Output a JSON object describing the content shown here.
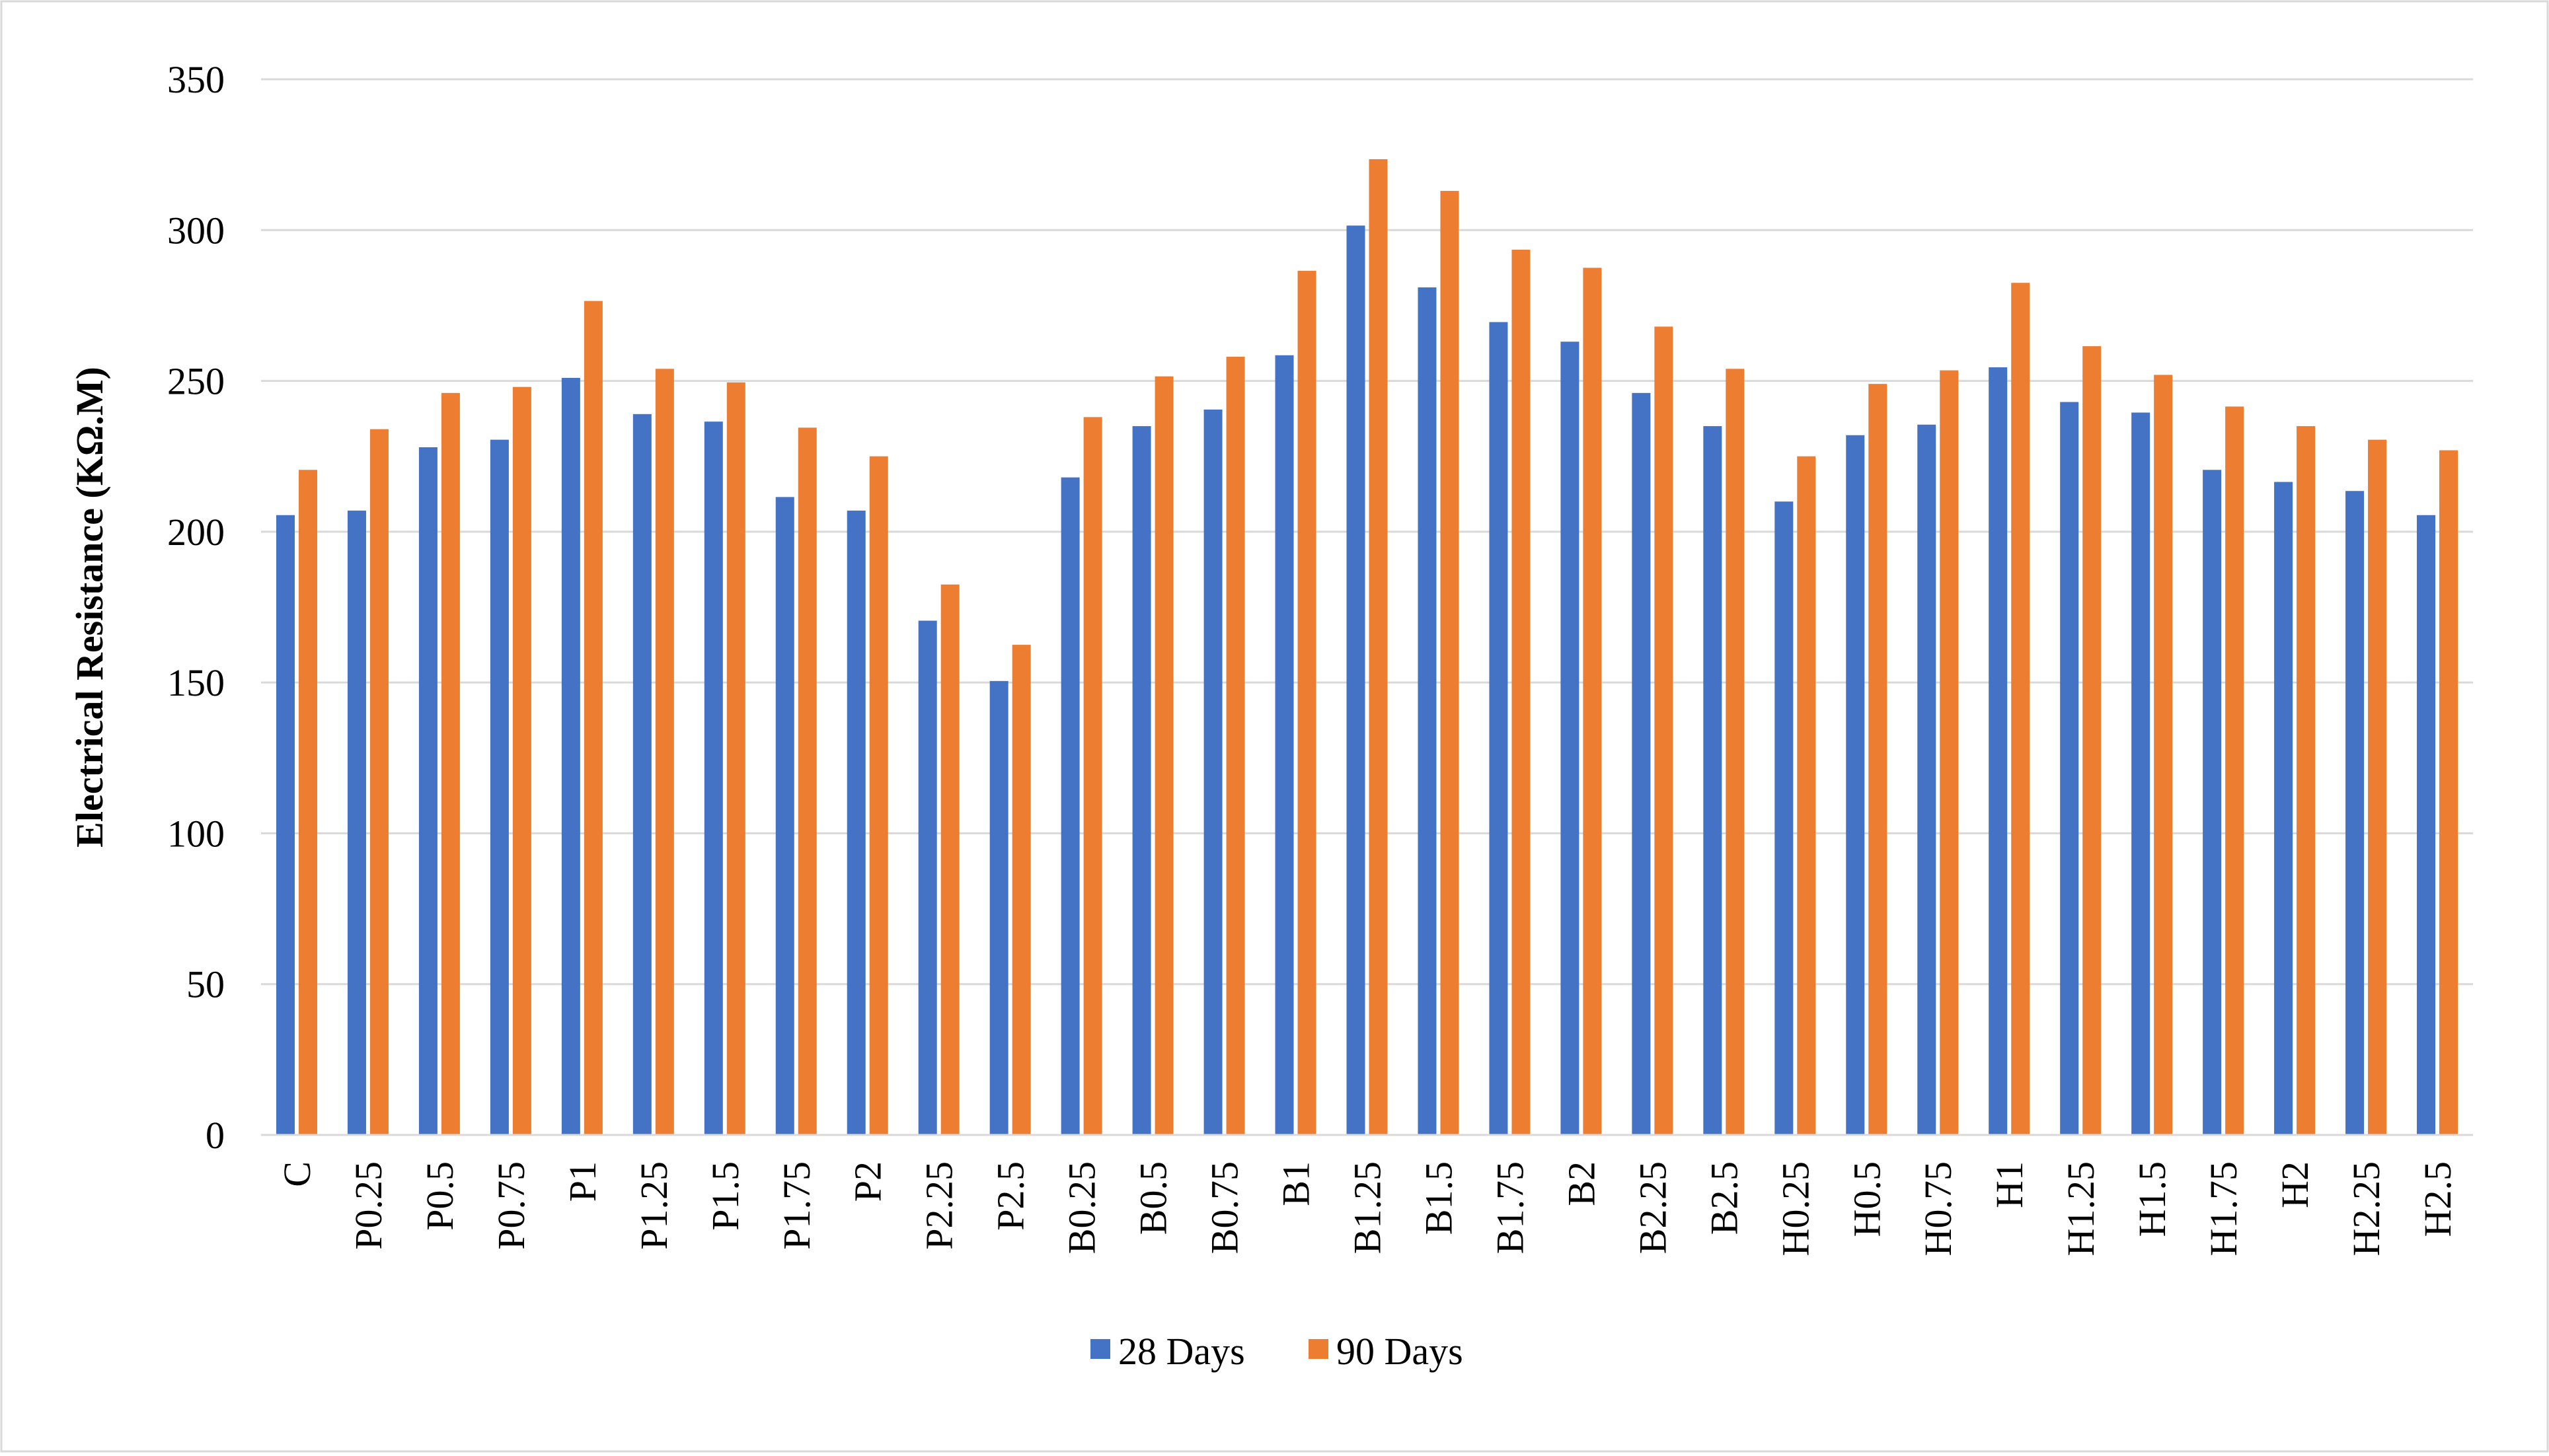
{
  "chart_data": {
    "type": "bar",
    "title": "",
    "xlabel": "",
    "ylabel": "Electrical Resistance (KΩ.M)",
    "ylim": [
      0,
      350
    ],
    "yticks": [
      0,
      50,
      100,
      150,
      200,
      250,
      300,
      350
    ],
    "grid": true,
    "legend_position": "bottom-center",
    "categories": [
      "C",
      "P0.25",
      "P0.5",
      "P0.75",
      "P1",
      "P1.25",
      "P1.5",
      "P1.75",
      "P2",
      "P2.25",
      "P2.5",
      "B0.25",
      "B0.5",
      "B0.75",
      "B1",
      "B1.25",
      "B1.5",
      "B1.75",
      "B2",
      "B2.25",
      "B2.5",
      "H0.25",
      "H0.5",
      "H0.75",
      "H1",
      "H1.25",
      "H1.5",
      "H1.75",
      "H2",
      "H2.25",
      "H2.5"
    ],
    "series": [
      {
        "name": "28 Days",
        "color": "#4472C4",
        "values": [
          205.5,
          207,
          228,
          230.5,
          251,
          239,
          236.5,
          211.5,
          207,
          170.5,
          150.5,
          218,
          235,
          240.5,
          258.5,
          301.5,
          281,
          269.5,
          263,
          246,
          235,
          210,
          232,
          235.5,
          254.5,
          243,
          239.5,
          220.5,
          216.5,
          213.5,
          205.5
        ]
      },
      {
        "name": "90 Days",
        "color": "#ED7D31",
        "values": [
          220.5,
          234,
          246,
          248,
          276.5,
          254,
          249.5,
          234.5,
          225,
          182.5,
          162.5,
          238,
          251.5,
          258,
          286.5,
          323.5,
          313,
          293.5,
          287.5,
          268,
          254,
          225,
          249,
          253.5,
          282.5,
          261.5,
          252,
          241.5,
          235,
          230.5,
          227
        ]
      }
    ]
  }
}
